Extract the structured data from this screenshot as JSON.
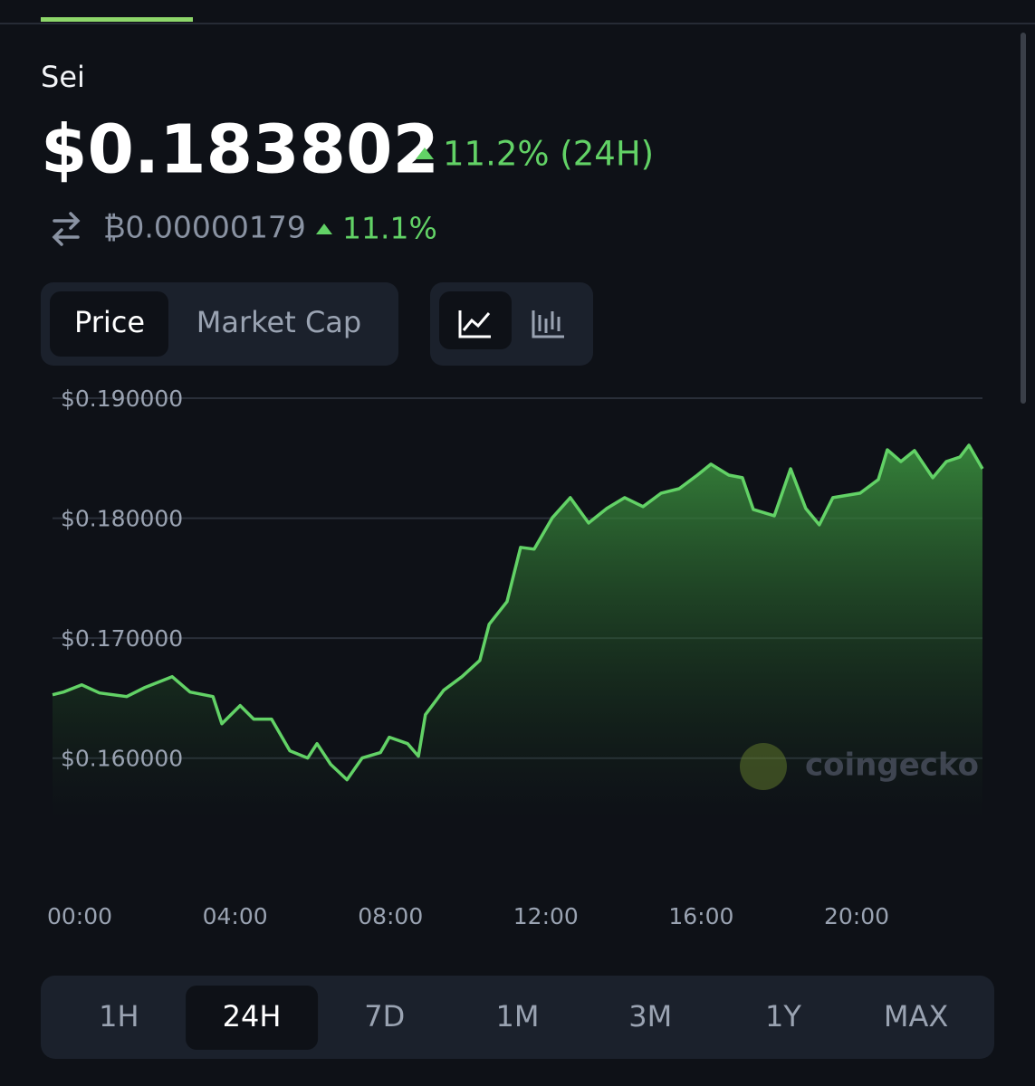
{
  "header": {
    "name": "Sei",
    "price": "$0.183802",
    "change": "11.2% (24H)",
    "btc_price": "₿0.00000179",
    "btc_change": "11.1%"
  },
  "tabs": [
    "Price",
    "Market Cap"
  ],
  "ranges": [
    "1H",
    "24H",
    "7D",
    "1M",
    "3M",
    "1Y",
    "MAX"
  ],
  "watermark": "coingecko",
  "chart_data": {
    "type": "line",
    "x": [
      -0.7,
      -0.42,
      0.05,
      0.51,
      1.21,
      1.68,
      2.38,
      2.84,
      3.43,
      3.66,
      4.13,
      4.48,
      4.94,
      5.41,
      5.87,
      6.11,
      6.46,
      6.88,
      7.27,
      7.74,
      7.97,
      8.44,
      8.72,
      8.9,
      9.37,
      9.84,
      10.3,
      10.54,
      11.0,
      11.35,
      11.7,
      12.17,
      12.63,
      13.1,
      13.57,
      14.03,
      14.5,
      14.97,
      15.43,
      15.9,
      16.25,
      16.71,
      17.06,
      17.34,
      17.88,
      18.3,
      18.69,
      19.04,
      19.39,
      20.09,
      20.56,
      20.79,
      21.14,
      21.49,
      21.96,
      22.31,
      22.66,
      22.89,
      23.24
    ],
    "series": [
      {
        "color": "#62d266",
        "values": [
          0.16528,
          0.16551,
          0.16611,
          0.16543,
          0.16513,
          0.16589,
          0.16679,
          0.16551,
          0.16513,
          0.16287,
          0.16438,
          0.16325,
          0.16325,
          0.16061,
          0.16001,
          0.16121,
          0.15948,
          0.1582,
          0.16001,
          0.16046,
          0.16174,
          0.16121,
          0.16016,
          0.16362,
          0.16566,
          0.16679,
          0.16815,
          0.17116,
          0.17304,
          0.17757,
          0.17742,
          0.18005,
          0.18171,
          0.1796,
          0.18081,
          0.18171,
          0.18096,
          0.18209,
          0.18246,
          0.18359,
          0.1845,
          0.18359,
          0.18337,
          0.18073,
          0.1802,
          0.18412,
          0.18081,
          0.17945,
          0.18171,
          0.18209,
          0.18322,
          0.1857,
          0.18472,
          0.18563,
          0.18337,
          0.18472,
          0.1851,
          0.18608,
          0.18412
        ]
      }
    ],
    "xlim": [
      -0.7,
      23.24
    ],
    "ylim": [
      0.155,
      0.19
    ],
    "xticks": [
      {
        "value": 0,
        "label": "00:00"
      },
      {
        "value": 4,
        "label": "04:00"
      },
      {
        "value": 8,
        "label": "08:00"
      },
      {
        "value": 12,
        "label": "12:00"
      },
      {
        "value": 16,
        "label": "16:00"
      },
      {
        "value": 20,
        "label": "20:00"
      }
    ],
    "yticks": [
      {
        "value": 0.16,
        "label": "$0.160000"
      },
      {
        "value": 0.17,
        "label": "$0.170000"
      },
      {
        "value": 0.18,
        "label": "$0.180000"
      },
      {
        "value": 0.19,
        "label": "$0.190000"
      }
    ],
    "grid": true
  }
}
